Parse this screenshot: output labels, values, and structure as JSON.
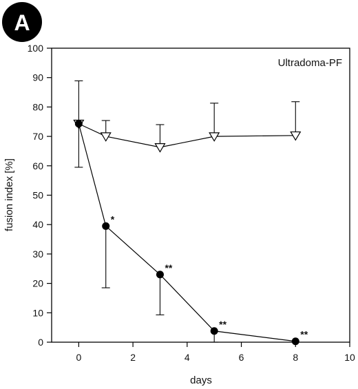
{
  "panel_label": "A",
  "chart_data": {
    "type": "line",
    "title": "",
    "xlabel": "days",
    "ylabel": "fusion index [%]",
    "xlim": [
      -1,
      10
    ],
    "ylim": [
      0,
      100
    ],
    "xticks": [
      0,
      2,
      4,
      6,
      8,
      10
    ],
    "yticks": [
      0,
      10,
      20,
      30,
      40,
      50,
      60,
      70,
      80,
      90,
      100
    ],
    "grid": false,
    "legend": {
      "text": "Ultradoma-PF",
      "placement": "top-right"
    },
    "series": [
      {
        "marker": "open-triangle-down",
        "color": "#000000",
        "x": [
          0,
          1,
          3,
          5,
          8
        ],
        "y": [
          74.3,
          70.0,
          66.3,
          70.0,
          70.3
        ],
        "error_up": [
          14.6,
          5.4,
          7.7,
          11.3,
          11.5
        ],
        "annotations": [
          "",
          "",
          "",
          "",
          ""
        ]
      },
      {
        "marker": "filled-circle",
        "color": "#000000",
        "x": [
          0,
          1,
          3,
          5,
          8
        ],
        "y": [
          74.3,
          39.5,
          23.0,
          3.8,
          0.3
        ],
        "error_down": [
          14.8,
          21.0,
          13.7,
          3.8,
          0
        ],
        "annotations": [
          "",
          "*",
          "**",
          "**",
          "**"
        ]
      }
    ]
  }
}
